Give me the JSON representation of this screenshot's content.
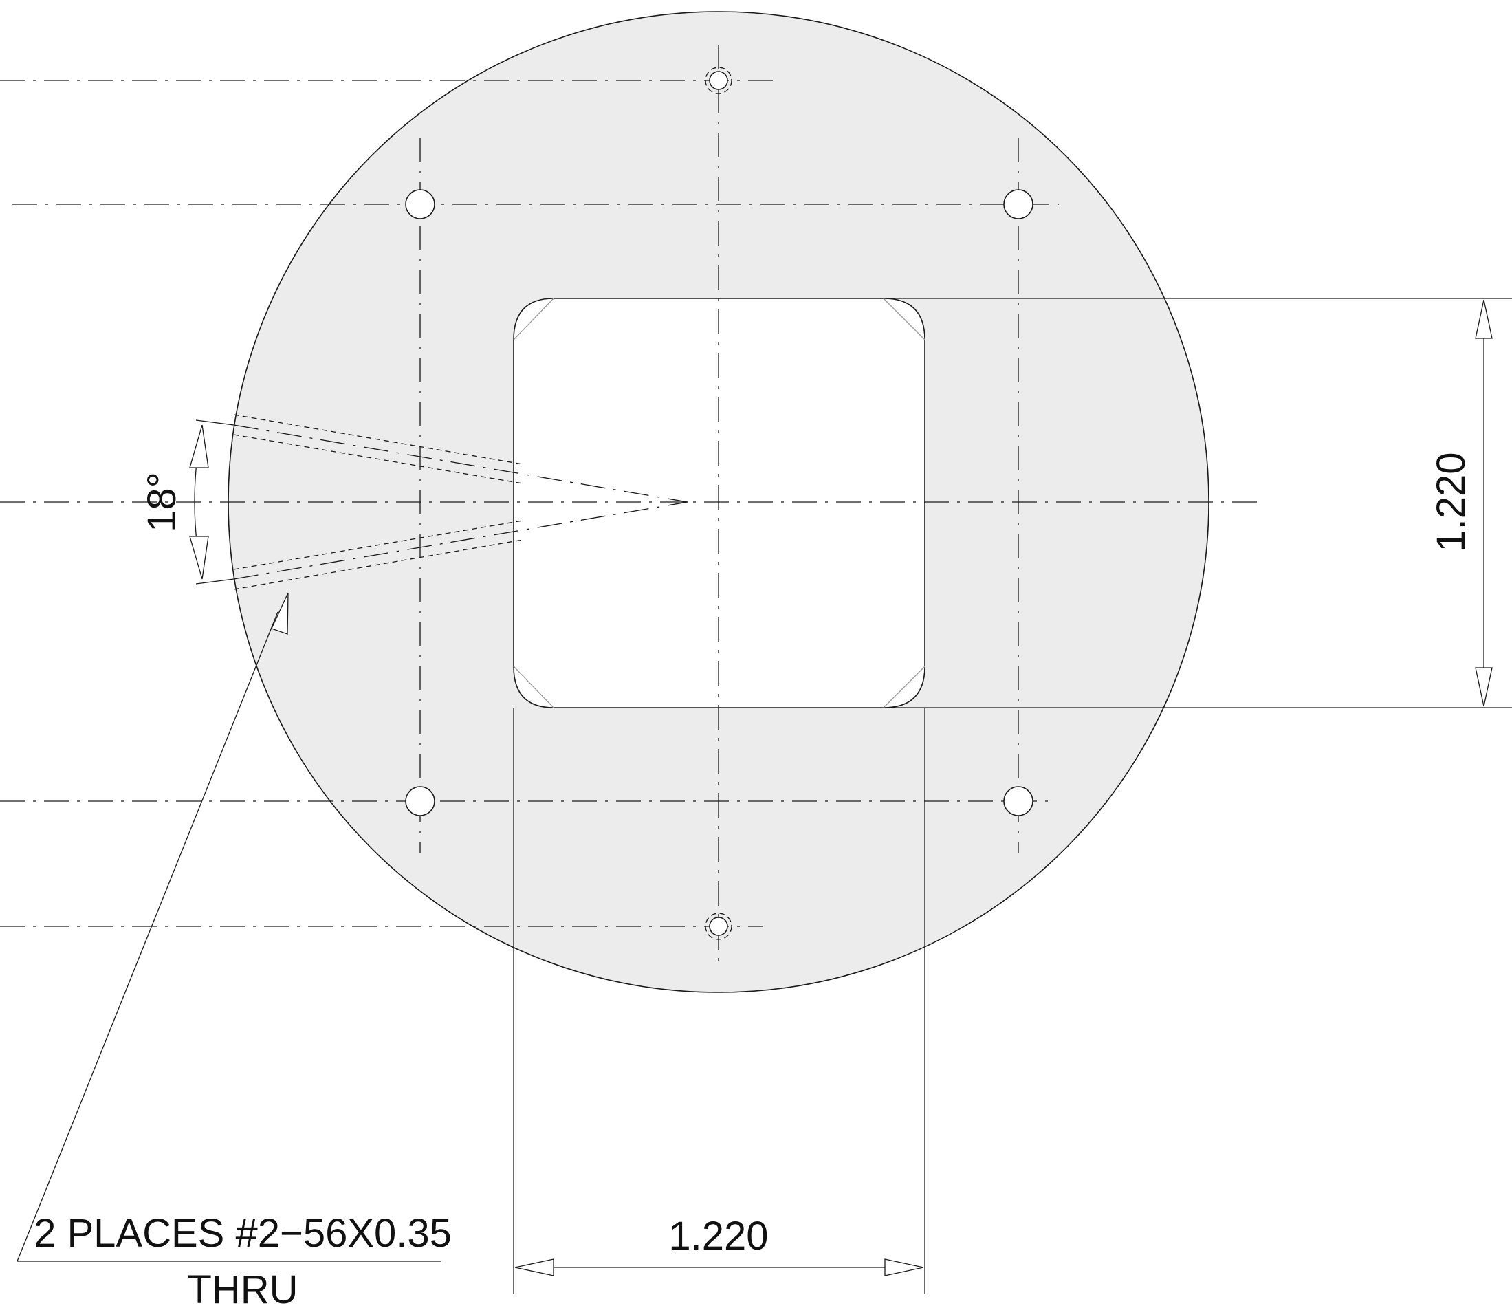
{
  "colors": {
    "plate_fill": "#ececec",
    "line": "#1a1a1a",
    "background": "#ffffff"
  },
  "dimensions": {
    "vertical_label": "1.220",
    "horizontal_label": "1.220",
    "angle_label": "18°"
  },
  "callout": {
    "line1": "2 PLACES #2−56X0.35",
    "line2": "THRU"
  }
}
